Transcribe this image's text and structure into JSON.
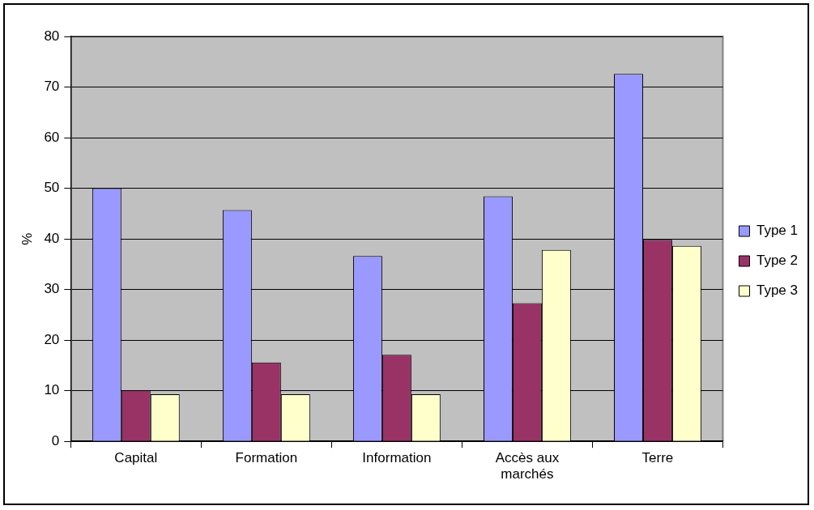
{
  "chart_data": {
    "type": "bar",
    "ylabel": "%",
    "categories": [
      "Capital",
      "Formation",
      "Information",
      "Accès aux marchés",
      "Terre"
    ],
    "series": [
      {
        "name": "Type 1",
        "color": "#9999ff",
        "values": [
          50,
          45.7,
          36.6,
          48.4,
          72.6
        ]
      },
      {
        "name": "Type 2",
        "color": "#993366",
        "values": [
          10.1,
          15.6,
          17.1,
          27.3,
          39.8
        ]
      },
      {
        "name": "Type 3",
        "color": "#ffffcc",
        "values": [
          9.3,
          9.3,
          9.3,
          37.8,
          38.6
        ]
      }
    ],
    "ylim": [
      0,
      80
    ],
    "yticks": [
      0,
      10,
      20,
      30,
      40,
      50,
      60,
      70,
      80
    ],
    "grid": "y",
    "legend": "right"
  }
}
